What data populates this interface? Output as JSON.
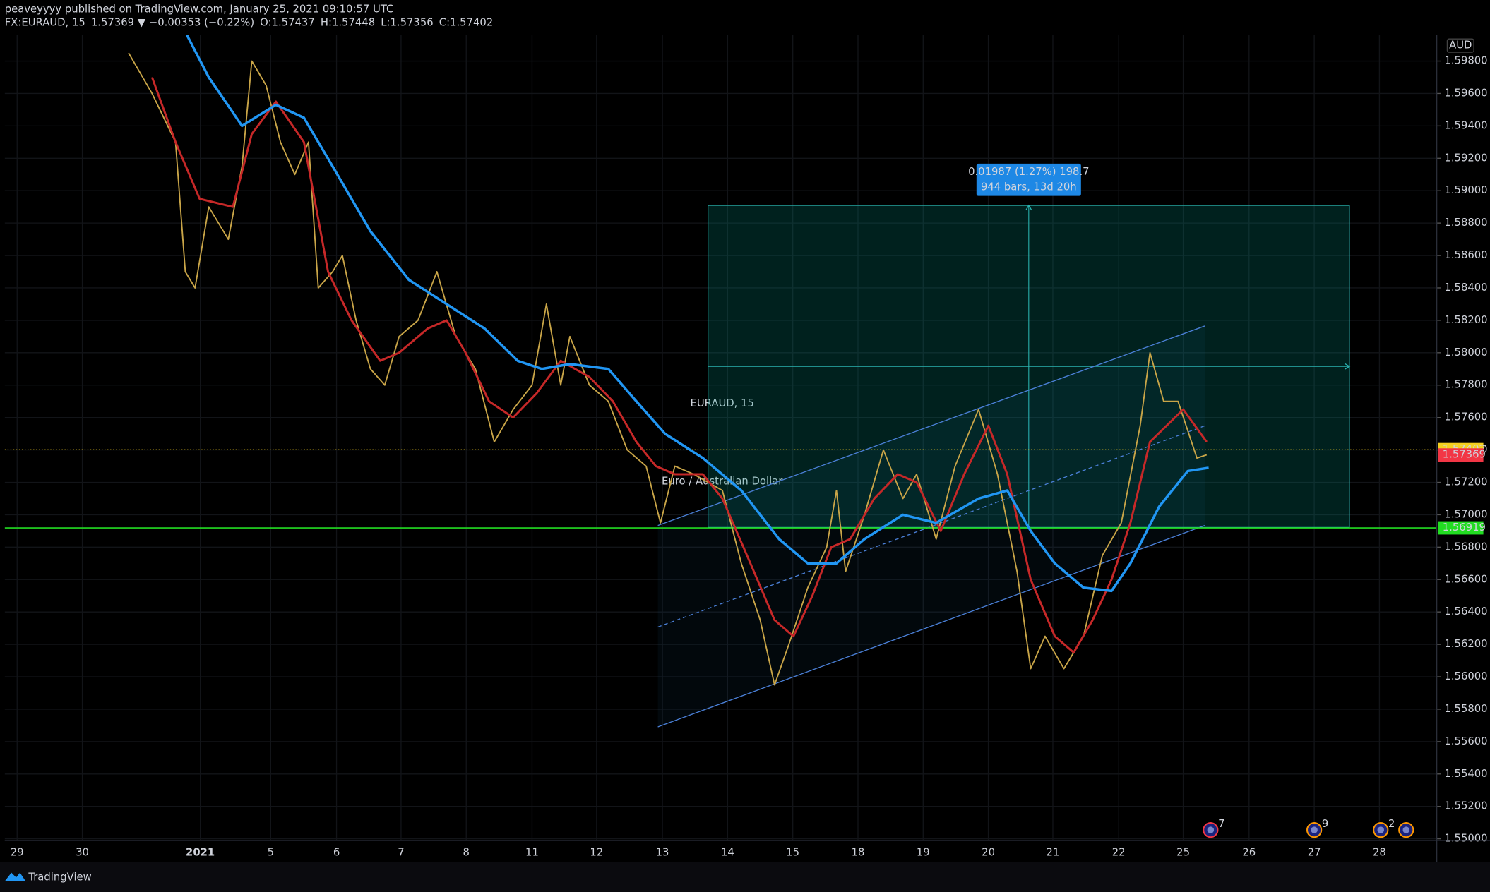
{
  "header": {
    "published": "peaveyyyy published on TradingView.com, January 25, 2021 09:10:57 UTC",
    "symbol": "FX:EURAUD, 15",
    "change": "1.57369 ▼ −0.00353 (−0.22%)",
    "ohlc": [
      {
        "label": "O:",
        "value": "1.57437"
      },
      {
        "label": "H:",
        "value": "1.57448"
      },
      {
        "label": "L:",
        "value": "1.57356"
      },
      {
        "label": "C:",
        "value": "1.57402"
      }
    ]
  },
  "footer": {
    "brand": "TradingView"
  },
  "chart_data": {
    "type": "line",
    "currency": "AUD",
    "watermark": {
      "title": "EURAUD, 15",
      "subtitle": "Euro / Australian Dollar"
    },
    "xlim": [
      -0.19,
      21.78
    ],
    "ylim": [
      1.5499,
      1.5996
    ],
    "grid": true,
    "xticks": [
      {
        "value": 0,
        "label": "29"
      },
      {
        "value": 1,
        "label": "30"
      },
      {
        "value": 2.81,
        "label": "2021"
      },
      {
        "value": 3.89,
        "label": "5"
      },
      {
        "value": 4.9,
        "label": "6"
      },
      {
        "value": 5.89,
        "label": "7"
      },
      {
        "value": 6.89,
        "label": "8"
      },
      {
        "value": 7.9,
        "label": "11"
      },
      {
        "value": 8.89,
        "label": "12"
      },
      {
        "value": 9.9,
        "label": "13"
      },
      {
        "value": 10.9,
        "label": "14"
      },
      {
        "value": 11.9,
        "label": "15"
      },
      {
        "value": 12.9,
        "label": "18"
      },
      {
        "value": 13.9,
        "label": "19"
      },
      {
        "value": 14.9,
        "label": "20"
      },
      {
        "value": 15.89,
        "label": "21"
      },
      {
        "value": 16.9,
        "label": "22"
      },
      {
        "value": 17.89,
        "label": "25"
      },
      {
        "value": 18.9,
        "label": "26"
      },
      {
        "value": 19.9,
        "label": "27"
      },
      {
        "value": 20.9,
        "label": "28"
      }
    ],
    "yticks": [
      {
        "value": 1.55,
        "label": "1.55000"
      },
      {
        "value": 1.552,
        "label": "1.55200"
      },
      {
        "value": 1.554,
        "label": "1.55400"
      },
      {
        "value": 1.556,
        "label": "1.55600"
      },
      {
        "value": 1.558,
        "label": "1.55800"
      },
      {
        "value": 1.56,
        "label": "1.56000"
      },
      {
        "value": 1.562,
        "label": "1.56200"
      },
      {
        "value": 1.564,
        "label": "1.56400"
      },
      {
        "value": 1.566,
        "label": "1.56600"
      },
      {
        "value": 1.568,
        "label": "1.56800"
      },
      {
        "value": 1.57,
        "label": "1.57000"
      },
      {
        "value": 1.572,
        "label": "1.57200"
      },
      {
        "value": 1.574,
        "label": "1.57400"
      },
      {
        "value": 1.576,
        "label": "1.57600"
      },
      {
        "value": 1.578,
        "label": "1.57800"
      },
      {
        "value": 1.58,
        "label": "1.58000"
      },
      {
        "value": 1.582,
        "label": "1.58200"
      },
      {
        "value": 1.584,
        "label": "1.58400"
      },
      {
        "value": 1.586,
        "label": "1.58600"
      },
      {
        "value": 1.588,
        "label": "1.58800"
      },
      {
        "value": 1.59,
        "label": "1.59000"
      },
      {
        "value": 1.592,
        "label": "1.59200"
      },
      {
        "value": 1.594,
        "label": "1.59400"
      },
      {
        "value": 1.596,
        "label": "1.59600"
      },
      {
        "value": 1.598,
        "label": "1.59800"
      }
    ],
    "series": [
      {
        "color": "#c9a548",
        "width": 1.4,
        "x": [
          1.71,
          2.07,
          2.43,
          2.58,
          2.73,
          2.94,
          3.24,
          3.45,
          3.6,
          3.82,
          4.04,
          4.26,
          4.47,
          4.62,
          4.84,
          4.99,
          5.2,
          5.42,
          5.64,
          5.86,
          6.15,
          6.44,
          6.73,
          7.03,
          7.32,
          7.61,
          7.9,
          8.12,
          8.34,
          8.48,
          8.78,
          9.07,
          9.36,
          9.65,
          9.87,
          10.09,
          10.38,
          10.82,
          11.11,
          11.4,
          11.62,
          11.84,
          12.13,
          12.42,
          12.57,
          12.71,
          13.0,
          13.29,
          13.59,
          13.8,
          14.1,
          14.39,
          14.75,
          15.04,
          15.34,
          15.55,
          15.77,
          16.06,
          16.36,
          16.65,
          16.94,
          17.23,
          17.38,
          17.59,
          17.81,
          18.1,
          18.25
        ],
        "values": [
          1.5985,
          1.596,
          1.593,
          1.585,
          1.584,
          1.589,
          1.587,
          1.5915,
          1.598,
          1.5965,
          1.593,
          1.591,
          1.593,
          1.584,
          1.585,
          1.586,
          1.582,
          1.579,
          1.578,
          1.581,
          1.582,
          1.585,
          1.581,
          1.579,
          1.5745,
          1.5765,
          1.578,
          1.583,
          1.578,
          1.581,
          1.578,
          1.577,
          1.574,
          1.573,
          1.5695,
          1.573,
          1.5725,
          1.5715,
          1.567,
          1.5635,
          1.5595,
          1.562,
          1.5655,
          1.568,
          1.5715,
          1.5665,
          1.57,
          1.574,
          1.571,
          1.5725,
          1.5685,
          1.573,
          1.5765,
          1.5725,
          1.5665,
          1.5605,
          1.5625,
          1.5605,
          1.5625,
          1.5675,
          1.5695,
          1.5755,
          1.58,
          1.577,
          1.577,
          1.5735,
          1.5737
        ]
      },
      {
        "color": "#c62828",
        "width": 2.2,
        "x": [
          2.07,
          2.43,
          2.8,
          3.31,
          3.6,
          3.97,
          4.4,
          4.77,
          5.13,
          5.57,
          5.86,
          6.3,
          6.59,
          6.88,
          7.24,
          7.61,
          7.97,
          8.34,
          8.78,
          9.14,
          9.5,
          9.8,
          10.09,
          10.52,
          10.82,
          11.25,
          11.62,
          11.91,
          12.2,
          12.49,
          12.78,
          13.15,
          13.51,
          13.8,
          14.17,
          14.53,
          14.9,
          15.19,
          15.55,
          15.92,
          16.21,
          16.5,
          16.79,
          17.08,
          17.38,
          17.89,
          18.25
        ],
        "values": [
          1.597,
          1.593,
          1.5895,
          1.589,
          1.5935,
          1.5955,
          1.593,
          1.585,
          1.582,
          1.5795,
          1.58,
          1.5815,
          1.582,
          1.58,
          1.577,
          1.576,
          1.5775,
          1.5795,
          1.5785,
          1.577,
          1.5745,
          1.573,
          1.5725,
          1.5725,
          1.571,
          1.567,
          1.5635,
          1.5625,
          1.565,
          1.568,
          1.5685,
          1.571,
          1.5725,
          1.572,
          1.569,
          1.5725,
          1.5755,
          1.5725,
          1.566,
          1.5625,
          1.5615,
          1.5635,
          1.566,
          1.5695,
          1.5745,
          1.5765,
          1.5745
        ]
      },
      {
        "color": "#2196f3",
        "width": 2.6,
        "x": [
          2.58,
          2.94,
          3.45,
          3.97,
          4.4,
          4.84,
          5.42,
          6.01,
          6.59,
          7.17,
          7.68,
          8.05,
          8.48,
          9.07,
          9.5,
          9.94,
          10.52,
          11.11,
          11.69,
          12.13,
          12.57,
          13.0,
          13.59,
          14.1,
          14.75,
          15.19,
          15.55,
          15.92,
          16.36,
          16.79,
          17.08,
          17.52,
          17.96,
          18.28
        ],
        "values": [
          1.5998,
          1.597,
          1.594,
          1.5953,
          1.5945,
          1.5915,
          1.5875,
          1.5845,
          1.583,
          1.5815,
          1.5795,
          1.579,
          1.5793,
          1.579,
          1.577,
          1.575,
          1.5735,
          1.5715,
          1.5685,
          1.567,
          1.567,
          1.5685,
          1.57,
          1.5695,
          1.571,
          1.5715,
          1.569,
          1.567,
          1.5655,
          1.5653,
          1.567,
          1.5705,
          1.5727,
          1.5729
        ]
      }
    ],
    "channel": {
      "x": [
        9.83,
        18.22
      ],
      "upper": [
        1.56934,
        1.58165
      ],
      "middle": [
        1.56307,
        1.57549
      ],
      "lower": [
        1.55691,
        1.56934
      ]
    },
    "measure": {
      "x": [
        10.6,
        20.44
      ],
      "y": [
        1.56922,
        1.58909
      ],
      "label": "0.01987 (1.27%) 198.7",
      "sublabel": "944 bars, 13d 20h"
    },
    "price_tags": [
      {
        "value": 1.57402,
        "color": "#f5d020",
        "line": "dotted"
      },
      {
        "value": 1.57369,
        "color": "#f23645"
      },
      {
        "value": 1.56919,
        "color": "#22dd22",
        "line": "solid"
      }
    ],
    "events": [
      {
        "x": 18.31,
        "count": "7"
      },
      {
        "x": 19.9,
        "count": "9"
      },
      {
        "x": 20.92,
        "count": "2"
      },
      {
        "x": 21.31
      }
    ]
  }
}
